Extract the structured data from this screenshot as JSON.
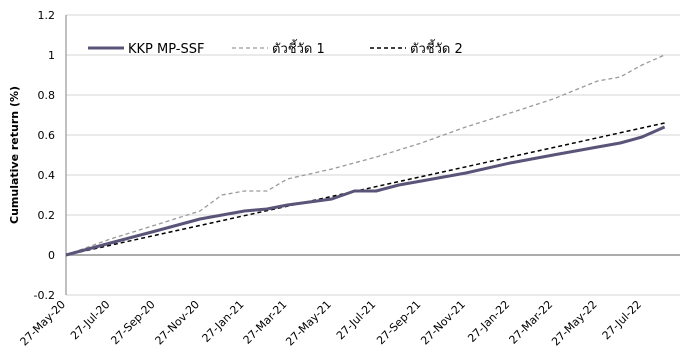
{
  "chart_data": {
    "type": "line",
    "title": "",
    "xlabel": "",
    "ylabel": "Cumulative return (%)",
    "ylim": [
      -0.2,
      1.2
    ],
    "yticks": [
      "-0.2",
      "0",
      "0.2",
      "0.4",
      "0.6",
      "0.8",
      "1",
      "1.2"
    ],
    "xticks": [
      "27-May-20",
      "27-Jul-20",
      "27-Sep-20",
      "27-Nov-20",
      "27-Jan-21",
      "27-Mar-21",
      "27-May-21",
      "27-Jul-21",
      "27-Sep-21",
      "27-Nov-21",
      "27-Jan-22",
      "27-Mar-22",
      "27-May-22",
      "27-Jul-22"
    ],
    "grid": "horizontal",
    "legend": "top-left",
    "series": [
      {
        "name": "KKP MP-SSF",
        "color": "#5a5478",
        "style": "solid",
        "x": [
          "27-May-20",
          "27-Jul-20",
          "27-Sep-20",
          "27-Nov-20",
          "27-Jan-21",
          "27-Feb-21",
          "27-Mar-21",
          "27-May-21",
          "27-Jun-21",
          "27-Jul-21",
          "27-Aug-21",
          "27-Sep-21",
          "27-Nov-21",
          "27-Jan-22",
          "27-Mar-22",
          "27-May-22",
          "27-Jun-22",
          "27-Jul-22",
          "27-Aug-22"
        ],
        "values": [
          0,
          0.06,
          0.12,
          0.18,
          0.22,
          0.23,
          0.25,
          0.28,
          0.32,
          0.32,
          0.35,
          0.37,
          0.41,
          0.46,
          0.5,
          0.54,
          0.56,
          0.59,
          0.64
        ]
      },
      {
        "name": "ตัวชี้วัด 1",
        "color": "#9a9a9a",
        "style": "dashed",
        "x": [
          "27-May-20",
          "27-Jul-20",
          "27-Sep-20",
          "27-Nov-20",
          "27-Dec-20",
          "27-Jan-21",
          "27-Feb-21",
          "27-Mar-21",
          "27-May-21",
          "27-Jul-21",
          "27-Sep-21",
          "27-Nov-21",
          "27-Jan-22",
          "27-Mar-22",
          "27-May-22",
          "27-Jun-22",
          "27-Jul-22",
          "27-Aug-22"
        ],
        "values": [
          0,
          0.08,
          0.15,
          0.22,
          0.3,
          0.32,
          0.32,
          0.38,
          0.43,
          0.49,
          0.56,
          0.64,
          0.71,
          0.78,
          0.87,
          0.89,
          0.95,
          1.0
        ]
      },
      {
        "name": "ตัวชี้วัด 2",
        "color": "#000000",
        "style": "dashed",
        "x": [
          "27-May-20",
          "27-Aug-22"
        ],
        "values": [
          0,
          0.66
        ]
      }
    ]
  }
}
